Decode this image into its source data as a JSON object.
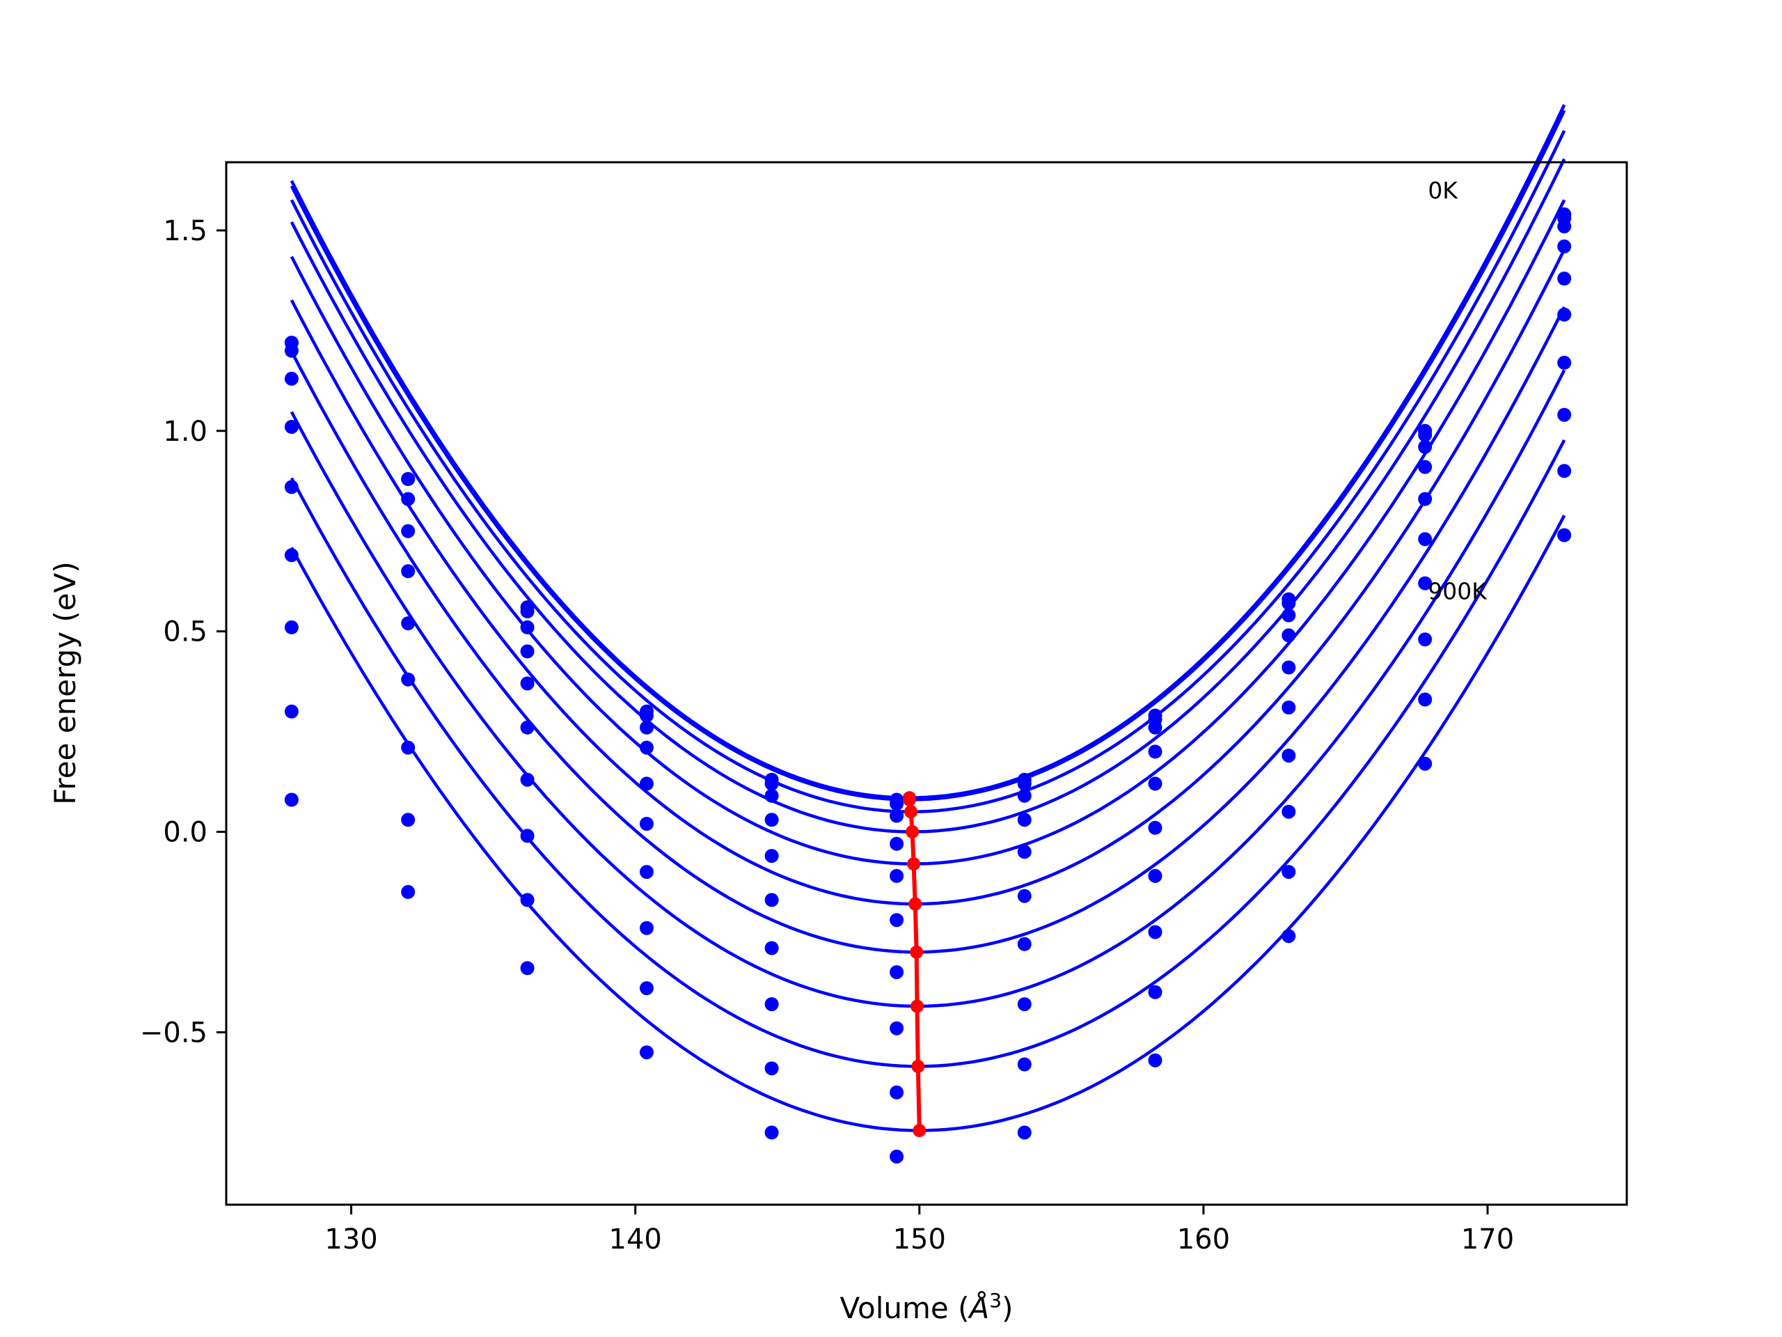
{
  "chart_data": {
    "type": "scatter",
    "title": "",
    "xlabel": "Volume (",
    "xlabel_unit_base": "Å",
    "xlabel_unit_exp": "3",
    "xlabel_close": ")",
    "ylabel": "Free energy (eV)",
    "xlim": [
      125.6,
      174.9
    ],
    "ylim": [
      -0.93,
      1.67
    ],
    "xticks": [
      130,
      140,
      150,
      160,
      170
    ],
    "xtick_labels": [
      "130",
      "140",
      "150",
      "160",
      "170"
    ],
    "yticks": [
      -0.5,
      0.0,
      0.5,
      1.0,
      1.5
    ],
    "ytick_labels": [
      "−0.5",
      "0.0",
      "0.5",
      "1.0",
      "1.5"
    ],
    "grid": false,
    "annotations": [
      {
        "text": "0K",
        "x": 167.9,
        "y": 1.58
      },
      {
        "text": "900K",
        "x": 167.9,
        "y": 0.58
      }
    ],
    "colors": {
      "curves": "#0000ff",
      "points": "#0000ff",
      "equilibrium": "#ff0000"
    },
    "x": [
      127.9,
      132.0,
      136.2,
      140.4,
      144.8,
      149.2,
      153.7,
      158.3,
      163.0,
      167.8,
      172.7
    ],
    "series": [
      {
        "points": [
          1.22,
          0.88,
          0.56,
          0.3,
          0.13,
          0.08,
          0.13,
          0.29,
          0.58,
          1.0,
          1.54
        ],
        "fit": {
          "a": 0.003253,
          "v0": 149.65,
          "f0": 0.085
        }
      },
      {
        "points": [
          1.22,
          0.88,
          0.55,
          0.29,
          0.12,
          0.07,
          0.12,
          0.28,
          0.57,
          0.99,
          1.53
        ],
        "fit": {
          "a": 0.003236,
          "v0": 149.65,
          "f0": 0.08
        }
      },
      {
        "points": [
          1.2,
          0.83,
          0.51,
          0.26,
          0.09,
          0.04,
          0.09,
          0.26,
          0.54,
          0.96,
          1.51
        ],
        "fit": {
          "a": 0.003211,
          "v0": 149.7,
          "f0": 0.05
        }
      },
      {
        "points": [
          1.13,
          0.75,
          0.45,
          0.21,
          0.03,
          -0.03,
          0.03,
          0.2,
          0.49,
          0.91,
          1.46
        ],
        "fit": {
          "a": 0.003186,
          "v0": 149.75,
          "f0": 0.0
        }
      },
      {
        "points": [
          1.01,
          0.65,
          0.37,
          0.12,
          -0.06,
          -0.11,
          -0.05,
          0.12,
          0.41,
          0.83,
          1.38
        ],
        "fit": {
          "a": 0.003158,
          "v0": 149.8,
          "f0": -0.08
        }
      },
      {
        "points": [
          0.86,
          0.52,
          0.26,
          0.02,
          -0.17,
          -0.22,
          -0.16,
          0.01,
          0.31,
          0.73,
          1.29
        ],
        "fit": {
          "a": 0.003126,
          "v0": 149.85,
          "f0": -0.18
        }
      },
      {
        "points": [
          0.69,
          0.38,
          0.13,
          -0.1,
          -0.29,
          -0.35,
          -0.28,
          -0.11,
          0.19,
          0.62,
          1.17
        ],
        "fit": {
          "a": 0.003095,
          "v0": 149.9,
          "f0": -0.3
        }
      },
      {
        "points": [
          0.51,
          0.21,
          -0.01,
          -0.24,
          -0.43,
          -0.49,
          -0.43,
          -0.25,
          0.05,
          0.48,
          1.04
        ],
        "fit": {
          "a": 0.003057,
          "v0": 149.92,
          "f0": -0.435
        }
      },
      {
        "points": [
          0.3,
          0.03,
          -0.17,
          -0.39,
          -0.59,
          -0.65,
          -0.58,
          -0.4,
          -0.1,
          0.33,
          0.9
        ],
        "fit": {
          "a": 0.003018,
          "v0": 149.95,
          "f0": -0.585
        }
      },
      {
        "points": [
          0.08,
          -0.15,
          -0.34,
          -0.55,
          -0.75,
          -0.81,
          -0.75,
          -0.57,
          -0.26,
          0.17,
          0.74
        ],
        "fit": {
          "a": 0.002977,
          "v0": 150.0,
          "f0": -0.745
        }
      }
    ],
    "equilibrium_line": {
      "x": [
        149.65,
        149.65,
        149.7,
        149.75,
        149.8,
        149.85,
        149.9,
        149.92,
        149.95,
        150.0
      ],
      "y": [
        0.085,
        0.08,
        0.05,
        0.0,
        -0.08,
        -0.18,
        -0.3,
        -0.435,
        -0.585,
        -0.745
      ]
    }
  }
}
